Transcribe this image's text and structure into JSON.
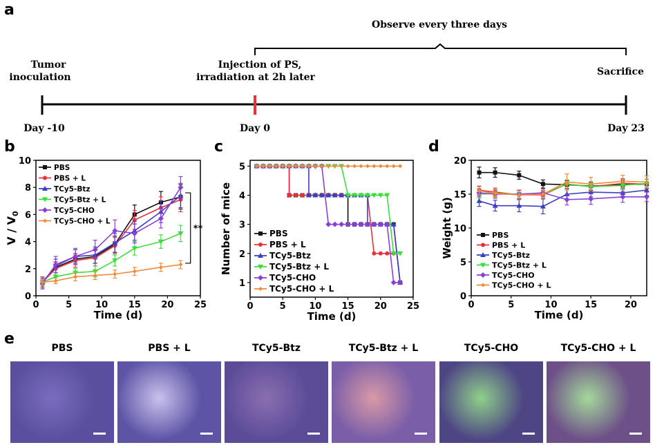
{
  "panel_labels": [
    "a",
    "b",
    "c",
    "d",
    "e"
  ],
  "timeline": {
    "observe": "Observe every three days",
    "events": [
      {
        "day": -10,
        "label1": "Tumor",
        "label2": "inoculation",
        "tick": "Day -10"
      },
      {
        "day": 0,
        "label1": "Injection of PS,",
        "label2": "irradiation at 2h later",
        "tick": "Day 0"
      },
      {
        "day": 23,
        "label1": "Sacrifice",
        "label2": "",
        "tick": "Day 23"
      }
    ]
  },
  "colors": {
    "PBS": "#111111",
    "PBS + L": "#e8303a",
    "TCy5-Btz": "#3b3fbf",
    "TCy5-Btz + L": "#3ddc3d",
    "TCy5-CHO": "#8a3fd8",
    "TCy5-CHO + L": "#f08a3c"
  },
  "chart_data": [
    {
      "type": "line",
      "xlabel": "Time (d)",
      "ylabel": "V / V0",
      "xlim": [
        0,
        25
      ],
      "ylim": [
        0,
        10
      ],
      "xticks": [
        0,
        5,
        10,
        15,
        20,
        25
      ],
      "yticks": [
        0,
        2,
        4,
        6,
        8,
        10
      ],
      "annotation": "**",
      "legend": "top-left",
      "x": [
        1,
        3,
        6,
        9,
        12,
        15,
        19,
        22
      ],
      "series": [
        {
          "name": "PBS",
          "values": [
            1.0,
            2.1,
            2.7,
            2.9,
            3.8,
            6.0,
            6.9,
            7.3
          ],
          "err": [
            0.3,
            0.4,
            0.4,
            0.5,
            0.6,
            0.7,
            0.8,
            0.9
          ]
        },
        {
          "name": "PBS + L",
          "values": [
            1.0,
            2.0,
            2.6,
            2.8,
            3.7,
            5.6,
            6.5,
            7.1
          ],
          "err": [
            0.4,
            0.5,
            0.5,
            0.6,
            0.6,
            0.7,
            0.8,
            0.9
          ]
        },
        {
          "name": "TCy5-Btz",
          "values": [
            1.0,
            2.2,
            2.9,
            3.0,
            3.9,
            4.8,
            6.2,
            7.4
          ],
          "err": [
            0.3,
            0.5,
            0.5,
            0.6,
            0.7,
            0.7,
            0.8,
            0.9
          ]
        },
        {
          "name": "TCy5-Btz + L",
          "values": [
            1.0,
            1.4,
            1.7,
            1.8,
            2.6,
            3.5,
            4.0,
            4.6
          ],
          "err": [
            0.3,
            0.3,
            0.3,
            0.4,
            0.4,
            0.5,
            0.5,
            0.6
          ]
        },
        {
          "name": "TCy5-CHO",
          "values": [
            0.9,
            2.3,
            2.9,
            3.4,
            4.8,
            4.6,
            5.7,
            8.0
          ],
          "err": [
            0.4,
            0.6,
            0.6,
            0.7,
            0.8,
            0.7,
            0.7,
            0.8
          ]
        },
        {
          "name": "TCy5-CHO + L",
          "values": [
            1.0,
            1.1,
            1.4,
            1.5,
            1.6,
            1.8,
            2.1,
            2.3
          ],
          "err": [
            0.2,
            0.2,
            0.3,
            0.3,
            0.3,
            0.3,
            0.3,
            0.3
          ]
        }
      ]
    },
    {
      "type": "line",
      "step": true,
      "xlabel": "Time (d)",
      "ylabel": "Number of mice",
      "xlim": [
        0,
        25
      ],
      "ylim": [
        0.5,
        5.2
      ],
      "xticks": [
        0,
        5,
        10,
        15,
        20,
        25
      ],
      "yticks": [
        1,
        2,
        3,
        4,
        5
      ],
      "legend": "bottom-left",
      "series": [
        {
          "name": "PBS",
          "points": [
            [
              1,
              5
            ],
            [
              6,
              5
            ],
            [
              6,
              4
            ],
            [
              15,
              4
            ],
            [
              15,
              3
            ],
            [
              22,
              3
            ],
            [
              23,
              1
            ]
          ]
        },
        {
          "name": "PBS + L",
          "points": [
            [
              1,
              5
            ],
            [
              6,
              5
            ],
            [
              6,
              4
            ],
            [
              18,
              4
            ],
            [
              19,
              2
            ],
            [
              22,
              2
            ]
          ]
        },
        {
          "name": "TCy5-Btz",
          "points": [
            [
              1,
              5
            ],
            [
              9,
              5
            ],
            [
              9,
              4
            ],
            [
              18,
              4
            ],
            [
              18,
              3
            ],
            [
              22,
              3
            ],
            [
              23,
              1
            ]
          ]
        },
        {
          "name": "TCy5-Btz + L",
          "points": [
            [
              1,
              5
            ],
            [
              14,
              5
            ],
            [
              15,
              4
            ],
            [
              21,
              4
            ],
            [
              22,
              2
            ],
            [
              23,
              2
            ]
          ]
        },
        {
          "name": "TCy5-CHO",
          "points": [
            [
              1,
              5
            ],
            [
              11,
              5
            ],
            [
              12,
              3
            ],
            [
              21,
              3
            ],
            [
              22,
              1
            ],
            [
              23,
              1
            ]
          ]
        },
        {
          "name": "TCy5-CHO + L",
          "points": [
            [
              1,
              5
            ],
            [
              23,
              5
            ]
          ]
        }
      ]
    },
    {
      "type": "line",
      "xlabel": "Time (d)",
      "ylabel": "Weight (g)",
      "xlim": [
        0,
        22
      ],
      "ylim": [
        0,
        20
      ],
      "xticks": [
        0,
        5,
        10,
        15,
        20
      ],
      "yticks": [
        0,
        5,
        10,
        15,
        20
      ],
      "legend": "bottom-left",
      "x": [
        1,
        3,
        6,
        9,
        12,
        15,
        19,
        22
      ],
      "series": [
        {
          "name": "PBS",
          "values": [
            18.2,
            18.2,
            17.8,
            16.5,
            16.4,
            16.2,
            16.4,
            16.5
          ],
          "err": [
            0.8,
            0.7,
            0.6,
            0.6,
            0.6,
            0.6,
            0.7,
            0.7
          ]
        },
        {
          "name": "PBS + L",
          "values": [
            15.6,
            15.3,
            14.9,
            14.9,
            16.5,
            16.1,
            16.6,
            16.5
          ],
          "err": [
            0.6,
            0.6,
            0.6,
            0.6,
            0.6,
            0.6,
            0.7,
            0.7
          ]
        },
        {
          "name": "TCy5-Btz",
          "values": [
            14.0,
            13.3,
            13.3,
            13.2,
            15.0,
            15.3,
            15.2,
            15.6
          ],
          "err": [
            0.8,
            0.8,
            0.9,
            1.1,
            0.8,
            0.7,
            0.7,
            0.8
          ]
        },
        {
          "name": "TCy5-Btz + L",
          "values": [
            15.0,
            15.1,
            15.0,
            15.0,
            16.5,
            16.1,
            16.3,
            16.6
          ],
          "err": [
            0.6,
            0.6,
            0.6,
            0.6,
            0.6,
            0.6,
            0.6,
            0.6
          ]
        },
        {
          "name": "TCy5-CHO",
          "values": [
            15.2,
            15.0,
            15.0,
            15.2,
            14.2,
            14.3,
            14.6,
            14.6
          ],
          "err": [
            0.6,
            0.6,
            0.6,
            0.6,
            0.8,
            0.8,
            0.8,
            0.7
          ]
        },
        {
          "name": "TCy5-CHO + L",
          "values": [
            15.5,
            15.1,
            14.9,
            15.0,
            16.8,
            16.5,
            16.9,
            16.8
          ],
          "err": [
            0.6,
            0.6,
            0.6,
            0.6,
            1.2,
            1.0,
            0.9,
            0.9
          ]
        }
      ]
    }
  ],
  "micrographs": [
    {
      "title": "PBS",
      "bg": "#5a4f9e",
      "tint": "#7a6cc0"
    },
    {
      "title": "PBS + L",
      "bg": "#5d54a6",
      "tint": "#c9c2ec"
    },
    {
      "title": "TCy5-Btz",
      "bg": "#5c4c98",
      "tint": "#8a6fb0"
    },
    {
      "title": "TCy5-Btz + L",
      "bg": "#7a5ea8",
      "tint": "#d99aa6"
    },
    {
      "title": "TCy5-CHO",
      "bg": "#4e4684",
      "tint": "#8fd08a"
    },
    {
      "title": "TCy5-CHO + L",
      "bg": "#6e5088",
      "tint": "#a4d99a"
    }
  ]
}
